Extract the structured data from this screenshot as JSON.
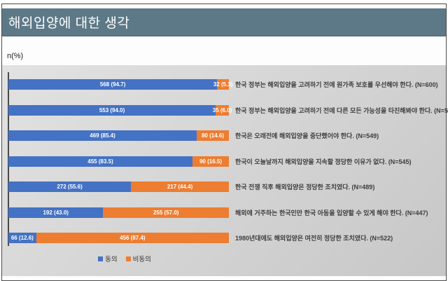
{
  "header": {
    "title": "해외입양에 대한 생각"
  },
  "axis_label": "n(%)",
  "colors": {
    "agree": "#4472C4",
    "disagree": "#ED7D31",
    "header_bg": "#5d7987",
    "axis": "#4a4a4a"
  },
  "legend": [
    {
      "label": "동의",
      "color": "#4472C4"
    },
    {
      "label": "비동의",
      "color": "#ED7D31"
    }
  ],
  "chart_data": {
    "type": "bar",
    "orientation": "horizontal",
    "stacked": true,
    "title": "해외입양에 대한 생각",
    "unit": "n(%)",
    "xlim": [
      0,
      100
    ],
    "grid": false,
    "legend_position": "bottom",
    "series_names": [
      "동의",
      "비동의"
    ],
    "rows": [
      {
        "label": "한국 정부는 해외입양을 고려하기 전에 원가족 보호를 우선해야 한다. (N=600)",
        "n_total": 600,
        "agree_n": 568,
        "agree_pct": 94.7,
        "agree_display": "568 (94.7)",
        "disagree_n": 32,
        "disagree_pct": 5.3,
        "disagree_display": "32 (5.3)"
      },
      {
        "label": "한국 정부는 해외입양을 고려하기 전에 다른 모든 가능성을 타진해봐야 한다. (N=588)",
        "n_total": 588,
        "agree_n": 553,
        "agree_pct": 94.0,
        "agree_display": "553 (94.0)",
        "disagree_n": 35,
        "disagree_pct": 6.0,
        "disagree_display": "35 (6.0)"
      },
      {
        "label": "한국은 오래전에 해외입양을 중단했어야 한다. (N=549)",
        "n_total": 549,
        "agree_n": 469,
        "agree_pct": 85.4,
        "agree_display": "469 (85.4)",
        "disagree_n": 80,
        "disagree_pct": 14.6,
        "disagree_display": "80 (14.6)"
      },
      {
        "label": "한국이 오늘날까지 해외입양을 지속할 정당한 이유가 없다. (N=545)",
        "n_total": 545,
        "agree_n": 455,
        "agree_pct": 83.5,
        "agree_display": "455 (83.5)",
        "disagree_n": 90,
        "disagree_pct": 16.5,
        "disagree_display": "90 (16.5)"
      },
      {
        "label": "한국 전쟁 직후 해외입양은 정당한 조치였다. (N=489)",
        "n_total": 489,
        "agree_n": 272,
        "agree_pct": 55.6,
        "agree_display": "272 (55.6)",
        "disagree_n": 217,
        "disagree_pct": 44.4,
        "disagree_display": "217 (44.4)"
      },
      {
        "label": "해외에 거주하는 한국인만 한국 아동을 입양할 수 있게 해야 한다. (N=447)",
        "n_total": 447,
        "agree_n": 192,
        "agree_pct": 43.0,
        "agree_display": "192 (43.0)",
        "disagree_n": 255,
        "disagree_pct": 57.0,
        "disagree_display": "255 (57.0)"
      },
      {
        "label": "1980년대에도 해외입양은 여전히 정당한 조치였다. (N=522)",
        "n_total": 522,
        "agree_n": 66,
        "agree_pct": 12.6,
        "agree_display": "66 (12.6)",
        "disagree_n": 456,
        "disagree_pct": 87.4,
        "disagree_display": "456 (87.4)"
      }
    ]
  }
}
